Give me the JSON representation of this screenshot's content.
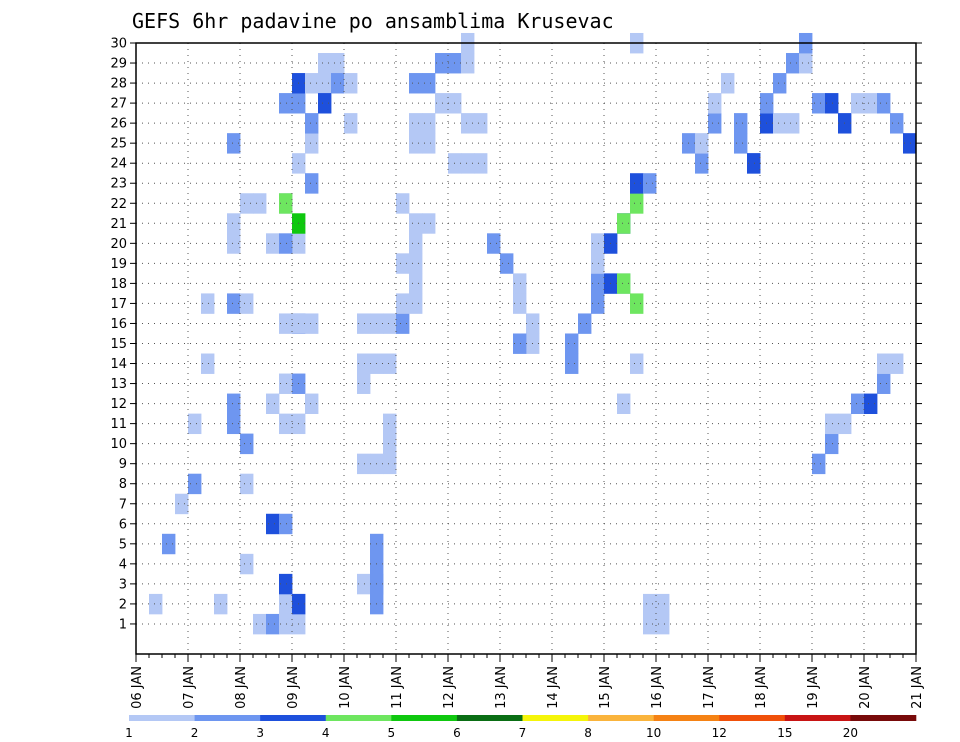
{
  "chart_data": {
    "type": "heatmap",
    "title": "GEFS 6hr padavine po ansamblima Krusevac",
    "xlabel": "",
    "ylabel": "",
    "x_tick_labels": [
      "06 JAN",
      "07 JAN",
      "08 JAN",
      "09 JAN",
      "10 JAN",
      "11 JAN",
      "12 JAN",
      "13 JAN",
      "14 JAN",
      "15 JAN",
      "16 JAN",
      "17 JAN",
      "18 JAN",
      "19 JAN",
      "20 JAN",
      "21 JAN"
    ],
    "y_tick_labels": [
      "1",
      "2",
      "3",
      "4",
      "5",
      "6",
      "7",
      "8",
      "9",
      "10",
      "11",
      "12",
      "13",
      "14",
      "15",
      "16",
      "17",
      "18",
      "19",
      "20",
      "21",
      "22",
      "23",
      "24",
      "25",
      "26",
      "27",
      "28",
      "29",
      "30"
    ],
    "ylim": [
      0,
      30
    ],
    "steps_per_day": 4,
    "num_steps": 60,
    "grid": true,
    "levels": [
      {
        "label": "1",
        "color": "#b4c8f5"
      },
      {
        "label": "2",
        "color": "#6e96f0"
      },
      {
        "label": "3",
        "color": "#1e50dc"
      },
      {
        "label": "4",
        "color": "#6ee660"
      },
      {
        "label": "5",
        "color": "#0fc80f"
      },
      {
        "label": "6",
        "color": "#0a6e14"
      },
      {
        "label": "7",
        "color": "#f5f50a"
      },
      {
        "label": "8",
        "color": "#fab43c"
      },
      {
        "label": "10",
        "color": "#f58214"
      },
      {
        "label": "12",
        "color": "#f0500a"
      },
      {
        "label": "15",
        "color": "#c81414"
      },
      {
        "label": "20",
        "color": "#780a0a"
      }
    ],
    "colorbar_labels": [
      "1",
      "2",
      "3",
      "4",
      "5",
      "6",
      "7",
      "8",
      "10",
      "12",
      "15",
      "20"
    ],
    "cells": [
      [
        8,
        0,
        4
      ],
      [
        9,
        0,
        1
      ],
      [
        10,
        0,
        20
      ],
      [
        11,
        0,
        16
      ],
      [
        12,
        0,
        20
      ],
      [
        17,
        0,
        9
      ],
      [
        18,
        0,
        9
      ],
      [
        19,
        0,
        9
      ],
      [
        19,
        0,
        10
      ],
      [
        19,
        0,
        11
      ],
      [
        37,
        0,
        12
      ],
      [
        37,
        0,
        18
      ],
      [
        38,
        0,
        14
      ],
      [
        38,
        0,
        30
      ],
      [
        39,
        0,
        2
      ],
      [
        40,
        0,
        2
      ],
      [
        39,
        0,
        1
      ],
      [
        40,
        0,
        1
      ],
      [
        1,
        0,
        2
      ],
      [
        2,
        1,
        5
      ],
      [
        3,
        0,
        7
      ],
      [
        4,
        1,
        8
      ],
      [
        4,
        0,
        11
      ],
      [
        5,
        0,
        14
      ],
      [
        5,
        0,
        17
      ],
      [
        6,
        0,
        2
      ],
      [
        7,
        1,
        11
      ],
      [
        7,
        1,
        12
      ],
      [
        7,
        1,
        17
      ],
      [
        7,
        0,
        20
      ],
      [
        7,
        0,
        21
      ],
      [
        7,
        1,
        25
      ],
      [
        8,
        0,
        8
      ],
      [
        8,
        0,
        10
      ],
      [
        8,
        0,
        17
      ],
      [
        8,
        0,
        22
      ],
      [
        9,
        0,
        22
      ],
      [
        8,
        1,
        10
      ],
      [
        10,
        1,
        1
      ],
      [
        11,
        0,
        2
      ],
      [
        10,
        2,
        6
      ],
      [
        11,
        1,
        6
      ],
      [
        10,
        0,
        12
      ],
      [
        11,
        0,
        13
      ],
      [
        12,
        1,
        13
      ],
      [
        11,
        2,
        3
      ],
      [
        11,
        0,
        1
      ],
      [
        12,
        0,
        1
      ],
      [
        12,
        2,
        2
      ],
      [
        11,
        0,
        11
      ],
      [
        12,
        0,
        11
      ],
      [
        13,
        0,
        12
      ],
      [
        12,
        4,
        21
      ],
      [
        11,
        1,
        20
      ],
      [
        11,
        0,
        22
      ],
      [
        11,
        3,
        22
      ],
      [
        12,
        0,
        24
      ],
      [
        13,
        1,
        23
      ],
      [
        12,
        2,
        16
      ],
      [
        12,
        0,
        16
      ],
      [
        13,
        0,
        16
      ],
      [
        11,
        1,
        27
      ],
      [
        12,
        1,
        27
      ],
      [
        12,
        2,
        28
      ],
      [
        13,
        0,
        28
      ],
      [
        13,
        0,
        25
      ],
      [
        13,
        1,
        26
      ],
      [
        14,
        0,
        28
      ],
      [
        14,
        2,
        27
      ],
      [
        14,
        0,
        29
      ],
      [
        15,
        0,
        29
      ],
      [
        15,
        1,
        28
      ],
      [
        16,
        0,
        26
      ],
      [
        16,
        0,
        28
      ],
      [
        17,
        0,
        14
      ],
      [
        17,
        0,
        13
      ],
      [
        17,
        0,
        16
      ],
      [
        18,
        0,
        14
      ],
      [
        19,
        0,
        14
      ],
      [
        18,
        0,
        16
      ],
      [
        19,
        0,
        16
      ],
      [
        17,
        0,
        3
      ],
      [
        18,
        0,
        3
      ],
      [
        18,
        1,
        2
      ],
      [
        18,
        1,
        3
      ],
      [
        18,
        1,
        4
      ],
      [
        18,
        1,
        5
      ],
      [
        20,
        1,
        16
      ],
      [
        20,
        0,
        17
      ],
      [
        21,
        0,
        17
      ],
      [
        21,
        0,
        18
      ],
      [
        20,
        0,
        19
      ],
      [
        21,
        0,
        19
      ],
      [
        21,
        0,
        20
      ],
      [
        21,
        0,
        21
      ],
      [
        22,
        0,
        21
      ],
      [
        20,
        0,
        22
      ],
      [
        21,
        0,
        25
      ],
      [
        21,
        0,
        26
      ],
      [
        22,
        0,
        25
      ],
      [
        22,
        0,
        26
      ],
      [
        21,
        1,
        28
      ],
      [
        22,
        1,
        28
      ],
      [
        23,
        1,
        29
      ],
      [
        24,
        1,
        29
      ],
      [
        25,
        0,
        29
      ],
      [
        25,
        0,
        30
      ],
      [
        24,
        0,
        27
      ],
      [
        23,
        0,
        27
      ],
      [
        24,
        0,
        24
      ],
      [
        25,
        0,
        24
      ],
      [
        26,
        0,
        24
      ],
      [
        25,
        0,
        26
      ],
      [
        26,
        0,
        26
      ],
      [
        27,
        1,
        20
      ],
      [
        28,
        1,
        19
      ],
      [
        29,
        0,
        18
      ],
      [
        29,
        0,
        17
      ],
      [
        30,
        0,
        16
      ],
      [
        30,
        0,
        15
      ],
      [
        29,
        1,
        15
      ],
      [
        33,
        1,
        14
      ],
      [
        33,
        1,
        15
      ],
      [
        34,
        1,
        16
      ],
      [
        35,
        1,
        17
      ],
      [
        35,
        1,
        18
      ],
      [
        36,
        2,
        18
      ],
      [
        37,
        3,
        18
      ],
      [
        38,
        3,
        17
      ],
      [
        35,
        0,
        19
      ],
      [
        35,
        0,
        20
      ],
      [
        36,
        2,
        20
      ],
      [
        37,
        2,
        21
      ],
      [
        37,
        3,
        21
      ],
      [
        38,
        3,
        22
      ],
      [
        38,
        2,
        23
      ],
      [
        39,
        1,
        23
      ],
      [
        42,
        1,
        25
      ],
      [
        43,
        1,
        24
      ],
      [
        43,
        0,
        25
      ],
      [
        44,
        1,
        26
      ],
      [
        44,
        0,
        27
      ],
      [
        45,
        0,
        28
      ],
      [
        46,
        1,
        25
      ],
      [
        46,
        1,
        26
      ],
      [
        47,
        1,
        24
      ],
      [
        47,
        2,
        24
      ],
      [
        48,
        2,
        26
      ],
      [
        49,
        0,
        26
      ],
      [
        50,
        0,
        26
      ],
      [
        48,
        1,
        27
      ],
      [
        49,
        1,
        28
      ],
      [
        50,
        1,
        29
      ],
      [
        51,
        0,
        29
      ],
      [
        51,
        1,
        30
      ],
      [
        52,
        1,
        27
      ],
      [
        53,
        2,
        27
      ],
      [
        54,
        2,
        26
      ],
      [
        55,
        0,
        27
      ],
      [
        56,
        0,
        27
      ],
      [
        57,
        1,
        27
      ],
      [
        58,
        1,
        26
      ],
      [
        59,
        2,
        25
      ],
      [
        52,
        1,
        9
      ],
      [
        53,
        1,
        10
      ],
      [
        53,
        0,
        11
      ],
      [
        54,
        0,
        11
      ],
      [
        55,
        1,
        12
      ],
      [
        56,
        2,
        12
      ],
      [
        57,
        1,
        13
      ],
      [
        57,
        0,
        14
      ],
      [
        58,
        0,
        14
      ]
    ]
  }
}
